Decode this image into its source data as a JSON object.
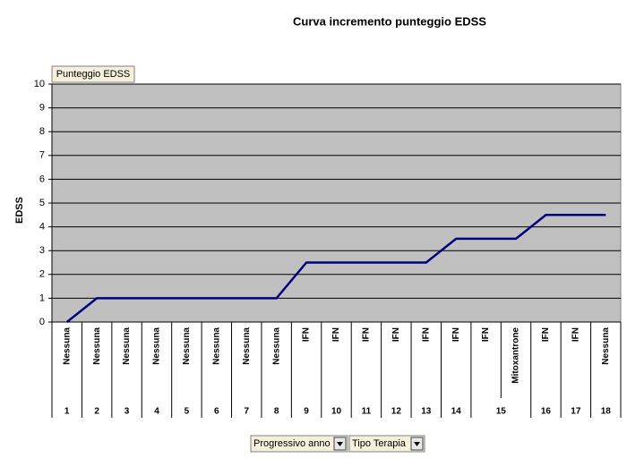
{
  "chart_data": {
    "type": "line",
    "title": "Curva incremento punteggio EDSS",
    "y_label": "EDSS",
    "data_field": "Punteggio EDSS",
    "row_fields": [
      "Progressivo anno",
      "Tipo Terapia"
    ],
    "categories": [
      "Nessuna",
      "Nessuna",
      "Nessuna",
      "Nessuna",
      "Nessuna",
      "Nessuna",
      "Nessuna",
      "Nessuna",
      "IFN",
      "IFN",
      "IFN",
      "IFN",
      "IFN",
      "IFN",
      "IFN",
      "Mitoxantrone",
      "IFN",
      "IFN",
      "Nessuna"
    ],
    "groups": [
      {
        "label": "1",
        "count": 1
      },
      {
        "label": "2",
        "count": 1
      },
      {
        "label": "3",
        "count": 1
      },
      {
        "label": "4",
        "count": 1
      },
      {
        "label": "5",
        "count": 1
      },
      {
        "label": "6",
        "count": 1
      },
      {
        "label": "7",
        "count": 1
      },
      {
        "label": "8",
        "count": 1
      },
      {
        "label": "9",
        "count": 1
      },
      {
        "label": "10",
        "count": 1
      },
      {
        "label": "11",
        "count": 1
      },
      {
        "label": "12",
        "count": 1
      },
      {
        "label": "13",
        "count": 1
      },
      {
        "label": "14",
        "count": 1
      },
      {
        "label": "15",
        "count": 2
      },
      {
        "label": "16",
        "count": 1
      },
      {
        "label": "17",
        "count": 1
      },
      {
        "label": "18",
        "count": 1
      }
    ],
    "series": [
      {
        "name": "Punteggio EDSS",
        "color": "#000080",
        "values": [
          0,
          1,
          1,
          1,
          1,
          1,
          1,
          1,
          2.5,
          2.5,
          2.5,
          2.5,
          2.5,
          3.5,
          3.5,
          3.5,
          4.5,
          4.5,
          4.5
        ]
      }
    ],
    "ylim": [
      0,
      10
    ],
    "yticks": [
      0,
      1,
      2,
      3,
      4,
      5,
      6,
      7,
      8,
      9,
      10
    ],
    "grid": true,
    "plot_background": "#c0c0c0"
  }
}
